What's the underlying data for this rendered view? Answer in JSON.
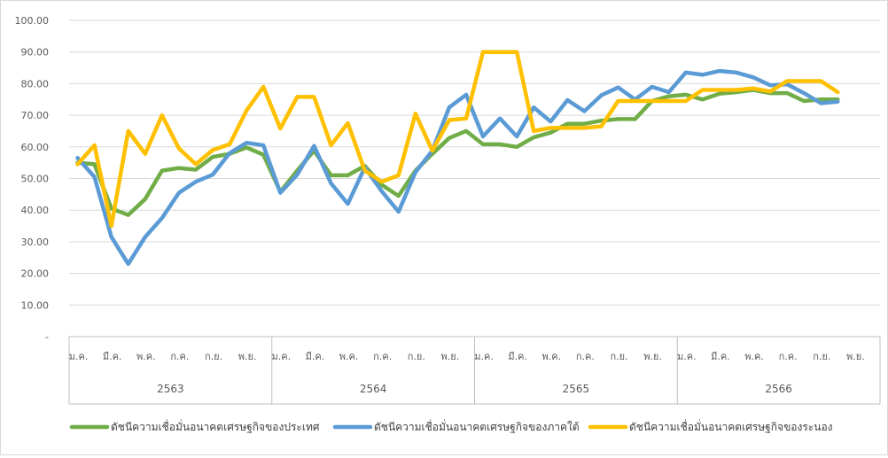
{
  "chart_data": {
    "type": "line",
    "title": "",
    "xlabel": "",
    "ylabel": "",
    "ylim": [
      0,
      100
    ],
    "y_ticks": [
      "-",
      "10.00",
      "20.00",
      "30.00",
      "40.00",
      "50.00",
      "60.00",
      "70.00",
      "80.00",
      "90.00",
      "100.00"
    ],
    "grid": true,
    "legend_position": "bottom",
    "years": [
      "2563",
      "2564",
      "2565",
      "2566"
    ],
    "month_labels": [
      "ม.ค.",
      "มี.ค.",
      "พ.ค.",
      "ก.ค.",
      "ก.ย.",
      "พ.ย."
    ],
    "x": [
      "2563-01",
      "2563-02",
      "2563-03",
      "2563-04",
      "2563-05",
      "2563-06",
      "2563-07",
      "2563-08",
      "2563-09",
      "2563-10",
      "2563-11",
      "2563-12",
      "2564-01",
      "2564-02",
      "2564-03",
      "2564-04",
      "2564-05",
      "2564-06",
      "2564-07",
      "2564-08",
      "2564-09",
      "2564-10",
      "2564-11",
      "2564-12",
      "2565-01",
      "2565-02",
      "2565-03",
      "2565-04",
      "2565-05",
      "2565-06",
      "2565-07",
      "2565-08",
      "2565-09",
      "2565-10",
      "2565-11",
      "2565-12",
      "2566-01",
      "2566-02",
      "2566-03",
      "2566-04",
      "2566-05",
      "2566-06",
      "2566-07",
      "2566-08",
      "2566-09",
      "2566-10"
    ],
    "series": [
      {
        "name": "ดัชนีความเชื่อมั่นอนาคตเศรษฐกิจของประเทศ",
        "color": "#70ad47",
        "values": [
          55.0,
          54.5,
          40.5,
          38.5,
          43.5,
          52.5,
          53.3,
          52.8,
          56.8,
          57.8,
          59.8,
          57.5,
          45.8,
          52.5,
          58.8,
          51.0,
          51.0,
          54.0,
          48.0,
          44.5,
          52.5,
          57.8,
          62.8,
          65.0,
          60.8,
          60.8,
          60.0,
          63.0,
          64.5,
          67.3,
          67.3,
          68.3,
          68.8,
          68.8,
          74.5,
          76.0,
          76.5,
          75.0,
          76.8,
          77.3,
          78.0,
          77.0,
          77.0,
          74.5,
          75.0,
          75.0
        ]
      },
      {
        "name": "ดัชนีความเชื่อมั่นอนาคตเศรษฐกิจของภาคใต้",
        "color": "#5b9bd5",
        "values": [
          56.5,
          50.5,
          31.5,
          23.0,
          31.5,
          37.5,
          45.5,
          49.0,
          51.2,
          58.0,
          61.3,
          60.5,
          45.5,
          51.2,
          60.3,
          48.5,
          42.0,
          53.5,
          46.0,
          39.5,
          52.0,
          58.8,
          72.5,
          76.5,
          63.3,
          69.0,
          63.3,
          72.5,
          68.0,
          74.8,
          71.3,
          76.3,
          78.8,
          75.0,
          79.0,
          77.3,
          83.5,
          82.8,
          84.0,
          83.5,
          82.0,
          79.5,
          79.8,
          77.0,
          73.8,
          74.3
        ]
      },
      {
        "name": "ดัชนีความเชื่อมั่นอนาคตเศรษฐกิจของระนอง",
        "color": "#ffc000",
        "values": [
          54.5,
          60.5,
          35.0,
          65.0,
          57.8,
          70.0,
          59.5,
          54.5,
          59.0,
          60.8,
          71.5,
          79.0,
          65.8,
          75.8,
          75.8,
          60.5,
          67.5,
          52.5,
          49.0,
          51.0,
          70.5,
          58.8,
          68.5,
          69.0,
          90.0,
          90.0,
          90.0,
          65.0,
          66.0,
          66.0,
          66.0,
          66.5,
          74.5,
          74.5,
          74.5,
          74.5,
          74.5,
          78.0,
          78.0,
          78.0,
          78.5,
          77.5,
          80.8,
          80.8,
          80.8,
          77.3
        ]
      }
    ]
  }
}
